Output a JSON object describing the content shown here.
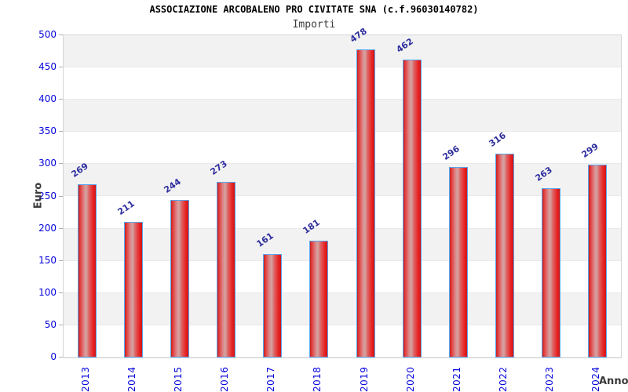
{
  "chart_data": {
    "type": "bar",
    "title": "ASSOCIAZIONE ARCOBALENO PRO CIVITATE SNA (c.f.96030140782)",
    "subtitle": "Importi",
    "ylabel": "Euro",
    "xlabel": "Anno",
    "categories": [
      "2013",
      "2014",
      "2015",
      "2016",
      "2017",
      "2018",
      "2019",
      "2020",
      "2021",
      "2022",
      "2023",
      "2024"
    ],
    "values": [
      269,
      211,
      244,
      273,
      161,
      181,
      478,
      462,
      296,
      316,
      263,
      299
    ],
    "ylim": [
      0,
      500
    ],
    "yticks": [
      0,
      50,
      100,
      150,
      200,
      250,
      300,
      350,
      400,
      450,
      500
    ],
    "legend": "none",
    "grid": "alternating-horizontal-bands",
    "colors": {
      "bar_fill": "#e01313",
      "bar_highlight": "#d4a4a4",
      "bar_border": "#58a6f0",
      "tick_label": "#0404dc",
      "value_label": "#2e2e9e",
      "band_gray": "#f2f2f2",
      "band_white": "#ffffff",
      "plot_border": "#d4d4d4",
      "axis_title_text": "#3a3a3a",
      "title_text": "#000000"
    }
  }
}
